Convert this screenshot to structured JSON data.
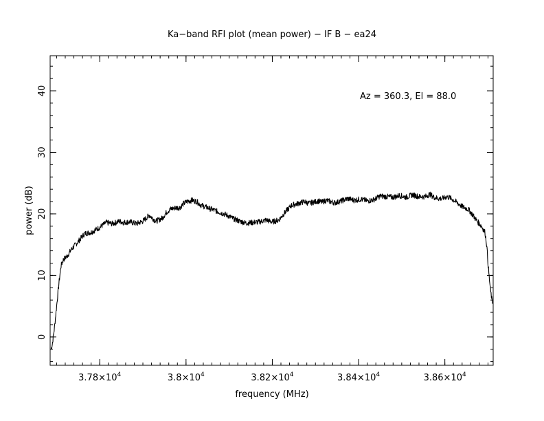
{
  "chart_data": {
    "type": "line",
    "title": "Ka−band RFI plot (mean power) − IF B − ea24",
    "xlabel": "frequency (MHz)",
    "ylabel": "power (dB)",
    "annotation": "Az = 360.3, El = 88.0",
    "xlim": [
      37685,
      38712
    ],
    "ylim": [
      -4.6,
      45.7
    ],
    "x_ticks": [
      {
        "value": 37800,
        "label": "3.78×10",
        "exp": "4"
      },
      {
        "value": 38000,
        "label": "3.8×10",
        "exp": "4"
      },
      {
        "value": 38200,
        "label": "3.82×10",
        "exp": "4"
      },
      {
        "value": 38400,
        "label": "3.84×10",
        "exp": "4"
      },
      {
        "value": 38600,
        "label": "3.86×10",
        "exp": "4"
      }
    ],
    "y_ticks": [
      {
        "value": 0,
        "label": "0"
      },
      {
        "value": 10,
        "label": "10"
      },
      {
        "value": 20,
        "label": "20"
      },
      {
        "value": 30,
        "label": "30"
      },
      {
        "value": 40,
        "label": "40"
      }
    ],
    "x_minor_step": 20,
    "y_minor_step": 2,
    "grid": false,
    "line_color": "#000000",
    "series": [
      {
        "x": [
          37687,
          37690,
          37695,
          37700,
          37705,
          37710,
          37715,
          37725,
          37735,
          37750,
          37765,
          37780,
          37800,
          37815,
          37830,
          37845,
          37855,
          37870,
          37885,
          37900,
          37915,
          37930,
          37945,
          37955,
          37965,
          37975,
          37985,
          37995,
          38005,
          38015,
          38025,
          38035,
          38050,
          38065,
          38080,
          38095,
          38110,
          38125,
          38140,
          38155,
          38170,
          38185,
          38200,
          38215,
          38230,
          38245,
          38255,
          38265,
          38275,
          38285,
          38295,
          38305,
          38315,
          38325,
          38335,
          38345,
          38360,
          38375,
          38390,
          38405,
          38420,
          38435,
          38450,
          38465,
          38480,
          38495,
          38510,
          38525,
          38540,
          38555,
          38565,
          38575,
          38585,
          38595,
          38605,
          38615,
          38625,
          38640,
          38655,
          38665,
          38675,
          38685,
          38693,
          38697,
          38700,
          38703,
          38706,
          38710
        ],
        "y": [
          -2.0,
          -1.2,
          1.5,
          5.0,
          8.5,
          11.5,
          12.5,
          13.2,
          14.3,
          15.5,
          16.8,
          17.0,
          17.8,
          18.6,
          18.4,
          18.8,
          18.6,
          18.7,
          18.4,
          18.8,
          19.8,
          18.8,
          19.3,
          20.3,
          20.8,
          21.0,
          21.0,
          21.7,
          22.1,
          22.2,
          22.0,
          21.4,
          21.0,
          20.6,
          20.2,
          19.8,
          19.2,
          18.8,
          18.5,
          18.6,
          18.7,
          19.0,
          18.7,
          19.0,
          20.3,
          21.4,
          21.6,
          21.8,
          22.0,
          21.7,
          21.9,
          22.1,
          21.9,
          22.2,
          22.0,
          21.8,
          22.1,
          22.5,
          22.2,
          22.4,
          22.1,
          22.3,
          22.9,
          22.8,
          22.7,
          23.0,
          22.7,
          23.1,
          22.8,
          22.8,
          23.2,
          22.7,
          22.5,
          22.5,
          22.8,
          22.5,
          22.0,
          21.2,
          20.7,
          19.8,
          18.8,
          18.0,
          17.0,
          15.0,
          12.0,
          9.5,
          7.5,
          5.5
        ]
      }
    ]
  }
}
